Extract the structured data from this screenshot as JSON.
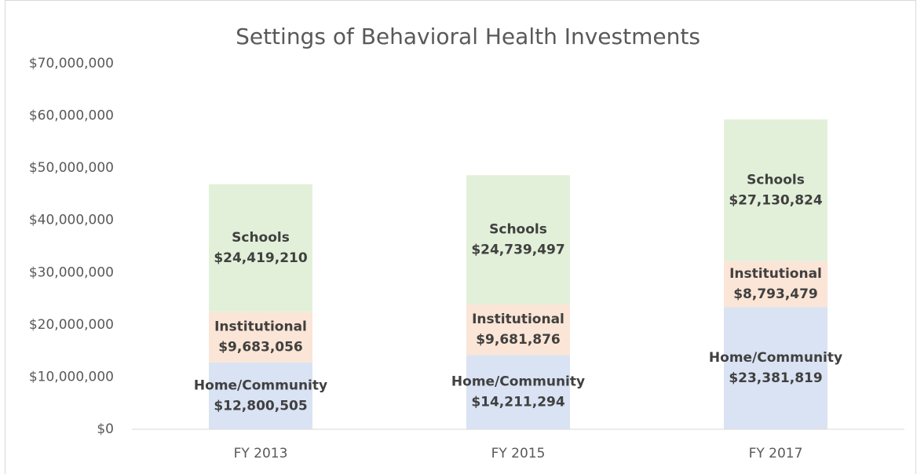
{
  "chart_data": {
    "type": "stacked-bar",
    "title": "Settings of Behavioral Health Investments",
    "categories": [
      "FY 2013",
      "FY 2015",
      "FY 2017"
    ],
    "series": [
      {
        "name": "Home/Community",
        "color": "#dae3f3",
        "values": [
          12800505,
          14211294,
          23381819
        ],
        "value_labels": [
          "$12,800,505",
          "$14,211,294",
          "$23,381,819"
        ]
      },
      {
        "name": "Institutional",
        "color": "#fbe5d6",
        "values": [
          9683056,
          9681876,
          8793479
        ],
        "value_labels": [
          "$9,683,056",
          "$9,681,876",
          "$8,793,479"
        ]
      },
      {
        "name": "Schools",
        "color": "#e2f0d9",
        "values": [
          24419210,
          24739497,
          27130824
        ],
        "value_labels": [
          "$24,419,210",
          "$24,739,497",
          "$27,130,824"
        ]
      }
    ],
    "ylim": [
      0,
      70000000
    ],
    "yticks": [
      {
        "value": 0,
        "label": "$0"
      },
      {
        "value": 10000000,
        "label": "$10,000,000"
      },
      {
        "value": 20000000,
        "label": "$20,000,000"
      },
      {
        "value": 30000000,
        "label": "$30,000,000"
      },
      {
        "value": 40000000,
        "label": "$40,000,000"
      },
      {
        "value": 50000000,
        "label": "$50,000,000"
      },
      {
        "value": 60000000,
        "label": "$60,000,000"
      },
      {
        "value": 70000000,
        "label": "$70,000,000"
      }
    ],
    "grid": false
  }
}
